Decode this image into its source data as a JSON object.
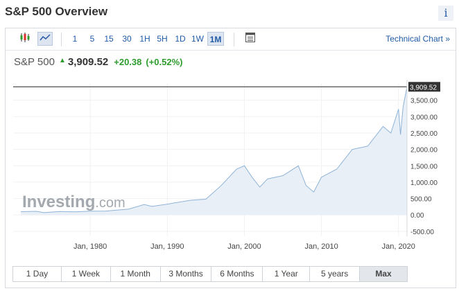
{
  "header": {
    "title": "S&P 500 Overview",
    "info_icon": "i"
  },
  "toolbar": {
    "intervals": [
      "1",
      "5",
      "15",
      "30",
      "1H",
      "5H",
      "1D",
      "1W",
      "1M"
    ],
    "active_interval": "1M",
    "technical_label": "Technical Chart »"
  },
  "quote": {
    "name": "S&P 500",
    "price": "3,909.52",
    "change": "+20.38",
    "change_pct": "(+0.52%)",
    "up_color": "#2d9c2d"
  },
  "chart_data": {
    "type": "area",
    "x": [
      1971,
      1973,
      1974,
      1976,
      1978,
      1980,
      1982,
      1985,
      1987,
      1988,
      1990,
      1993,
      1995,
      1997,
      1999,
      2000,
      2001,
      2002,
      2003,
      2005,
      2007,
      2008,
      2009,
      2010,
      2012,
      2014,
      2016,
      2018,
      2019,
      2020,
      2020.25,
      2020.6,
      2021.1
    ],
    "y": [
      100,
      110,
      70,
      105,
      95,
      115,
      120,
      180,
      320,
      260,
      330,
      450,
      480,
      900,
      1400,
      1500,
      1150,
      850,
      1100,
      1200,
      1500,
      900,
      700,
      1150,
      1400,
      2000,
      2100,
      2700,
      2500,
      3230,
      2450,
      3300,
      3909.52
    ],
    "xtick_labels": [
      "Jan, 1980",
      "Jan, 1990",
      "Jan, 2000",
      "Jan, 2010",
      "Jan, 2020"
    ],
    "xticks": [
      1980,
      1990,
      2000,
      2010,
      2020
    ],
    "ytick_labels": [
      "3,500.00",
      "3,000.00",
      "2,500.00",
      "2,000.00",
      "1,500.00",
      "1,000.00",
      "500.00",
      "0.00",
      "-500.00"
    ],
    "yticks": [
      3500,
      3000,
      2500,
      2000,
      1500,
      1000,
      500,
      0,
      -500
    ],
    "ylim": [
      -650,
      4000
    ],
    "xlim": [
      1970,
      2021.1
    ],
    "last_value_label": "3,909.52",
    "watermark": "Investing.com",
    "line_color": "#8fb3d6",
    "fill_color": "#e8eff7"
  },
  "ranges": {
    "items": [
      "1 Day",
      "1 Week",
      "1 Month",
      "3 Months",
      "6 Months",
      "1 Year",
      "5 years",
      "Max"
    ],
    "active": "Max"
  }
}
